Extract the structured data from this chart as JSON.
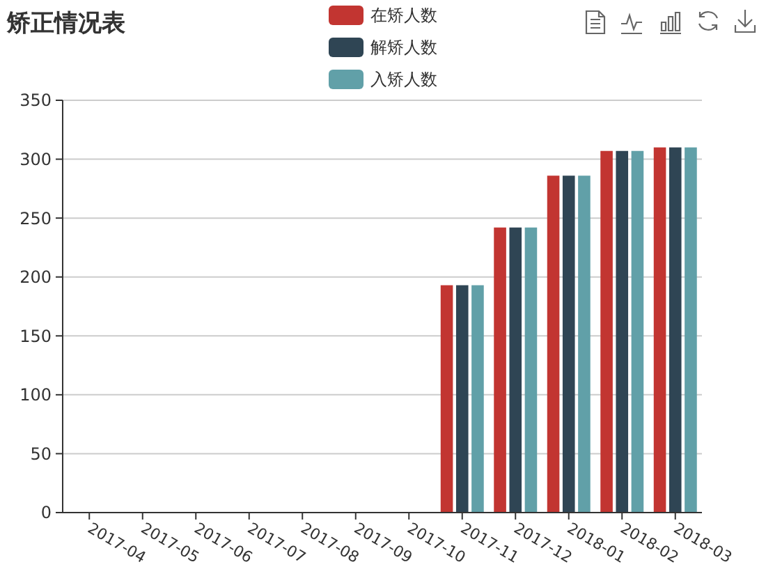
{
  "chart_data": {
    "type": "bar",
    "title": "矫正情况表",
    "categories": [
      "2017-04",
      "2017-05",
      "2017-06",
      "2017-07",
      "2017-08",
      "2017-09",
      "2017-10",
      "2017-11",
      "2017-12",
      "2018-01",
      "2018-02",
      "2018-03"
    ],
    "series": [
      {
        "name": "在矫人数",
        "color": "#c23531",
        "values": [
          0,
          0,
          0,
          0,
          0,
          0,
          0,
          193,
          242,
          286,
          307,
          310
        ]
      },
      {
        "name": "解矫人数",
        "color": "#2f4554",
        "values": [
          0,
          0,
          0,
          0,
          0,
          0,
          0,
          193,
          242,
          286,
          307,
          310
        ]
      },
      {
        "name": "入矫人数",
        "color": "#61a0a8",
        "values": [
          0,
          0,
          0,
          0,
          0,
          0,
          0,
          193,
          242,
          286,
          307,
          310
        ]
      }
    ],
    "ylim": [
      0,
      350
    ],
    "yticks": [
      0,
      50,
      100,
      150,
      200,
      250,
      300,
      350
    ],
    "grid": "y",
    "legend": "top"
  }
}
